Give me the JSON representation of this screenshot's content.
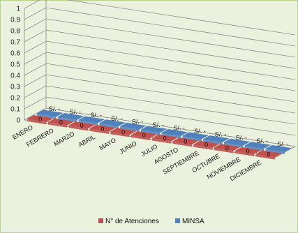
{
  "chart_data": {
    "type": "bar",
    "style": "3d-clustered",
    "categories": [
      "ENERO",
      "FEBRERO",
      "MARZO",
      "ABRIL",
      "MAYO",
      "JUNIO",
      "JULIO",
      "AGOSTO",
      "SEPTIEMBRE",
      "OCTUBRE",
      "NOVIEMBRE",
      "DICIEMBRE"
    ],
    "series": [
      {
        "name": "N° de Atenciones",
        "color": "#c0504d",
        "values": [
          0,
          0,
          0,
          0,
          0,
          0,
          0,
          0,
          0,
          0,
          0,
          0
        ],
        "data_labels": [
          "0",
          "0",
          "0",
          "0",
          "0",
          "0",
          "0",
          "0",
          "0",
          "0",
          "0",
          "0"
        ]
      },
      {
        "name": "MINSA",
        "color": "#4f81bd",
        "values": [
          0,
          0,
          0,
          0,
          0,
          0,
          0,
          0,
          0,
          0,
          0,
          0
        ],
        "data_labels": [
          "S/. -",
          "S/. -",
          "S/. -",
          "S/. -",
          "S/. -",
          "S/. -",
          "S/. -",
          "S/. -",
          "S/. -",
          "S/. -",
          "S/. -",
          "S/. -"
        ]
      }
    ],
    "ylim": [
      0,
      1
    ],
    "y_ticks": [
      "0",
      "0.1",
      "0.2",
      "0.3",
      "0.4",
      "0.5",
      "0.6",
      "0.7",
      "0.8",
      "0.9",
      "1"
    ],
    "grid": true,
    "legend": "bottom",
    "background": "#eaf1dd",
    "border_color": "#b9d28a"
  }
}
